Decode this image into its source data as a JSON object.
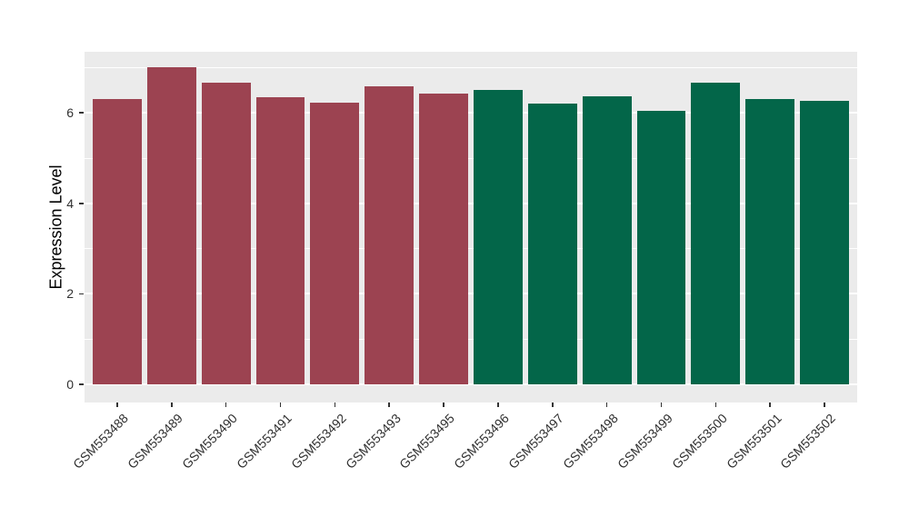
{
  "chart_data": {
    "type": "bar",
    "title": "",
    "xlabel": "",
    "ylabel": "Expression Level",
    "categories": [
      "GSM553488",
      "GSM553489",
      "GSM553490",
      "GSM553491",
      "GSM553492",
      "GSM553493",
      "GSM553495",
      "GSM553496",
      "GSM553497",
      "GSM553498",
      "GSM553499",
      "GSM553500",
      "GSM553501",
      "GSM553502"
    ],
    "values": [
      6.3,
      7.01,
      6.67,
      6.35,
      6.22,
      6.58,
      6.42,
      6.5,
      6.21,
      6.36,
      6.05,
      6.67,
      6.3,
      6.27
    ],
    "bar_colors": [
      "#9C4351",
      "#9C4351",
      "#9C4351",
      "#9C4351",
      "#9C4351",
      "#9C4351",
      "#9C4351",
      "#036649",
      "#036649",
      "#036649",
      "#036649",
      "#036649",
      "#036649",
      "#036649"
    ],
    "group_colors": {
      "left_group": "#9C4351",
      "right_group": "#036649"
    },
    "yticks": [
      0,
      2,
      4,
      6
    ],
    "ytick_labels": [
      "0",
      "2",
      "4",
      "6"
    ],
    "minor_ticks": [
      1,
      3,
      5,
      7
    ],
    "ylim": [
      -0.4,
      7.35
    ],
    "grid": true,
    "legend": "none",
    "panel_bg": "#EBEBEB",
    "grid_color": "#FFFFFF",
    "axis_text_color": "#303030",
    "tick_mark_color": "#333333",
    "x_label_rotation_deg": 45
  }
}
